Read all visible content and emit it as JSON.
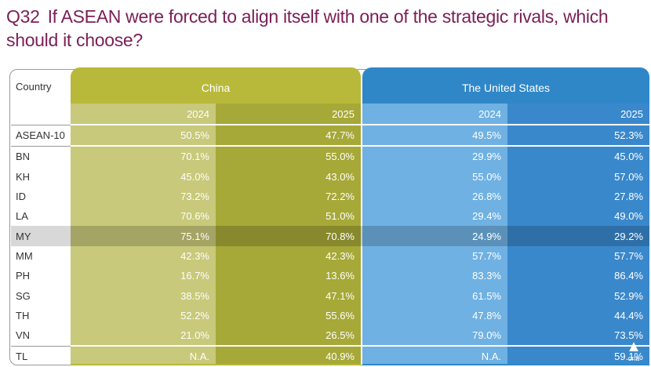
{
  "question": {
    "number": "Q32",
    "text": "If ASEAN were forced to align itself with one of the strategic rivals, which should it choose?"
  },
  "colors": {
    "china_panel": "#b8b93a",
    "china_2024": "#c8c97a",
    "china_2025": "#a6a838",
    "us_panel": "#2f87c8",
    "us_2024": "#6fb1e2",
    "us_2025": "#3a88cc",
    "title": "#7a1f57"
  },
  "logo": {
    "text": "cna"
  },
  "chart_data": {
    "type": "table",
    "row_header": "Country",
    "groups": [
      {
        "name": "China",
        "years": [
          "2024",
          "2025"
        ]
      },
      {
        "name": "The United States",
        "years": [
          "2024",
          "2025"
        ]
      }
    ],
    "rows": [
      {
        "country": "ASEAN-10",
        "values": [
          "50.5%",
          "47.7%",
          "49.5%",
          "52.3%"
        ]
      },
      {
        "country": "BN",
        "values": [
          "70.1%",
          "55.0%",
          "29.9%",
          "45.0%"
        ]
      },
      {
        "country": "KH",
        "values": [
          "45.0%",
          "43.0%",
          "55.0%",
          "57.0%"
        ]
      },
      {
        "country": "ID",
        "values": [
          "73.2%",
          "72.2%",
          "26.8%",
          "27.8%"
        ]
      },
      {
        "country": "LA",
        "values": [
          "70.6%",
          "51.0%",
          "29.4%",
          "49.0%"
        ]
      },
      {
        "country": "MY",
        "values": [
          "75.1%",
          "70.8%",
          "24.9%",
          "29.2%"
        ]
      },
      {
        "country": "MM",
        "values": [
          "42.3%",
          "42.3%",
          "57.7%",
          "57.7%"
        ]
      },
      {
        "country": "PH",
        "values": [
          "16.7%",
          "13.6%",
          "83.3%",
          "86.4%"
        ]
      },
      {
        "country": "SG",
        "values": [
          "38.5%",
          "47.1%",
          "61.5%",
          "52.9%"
        ]
      },
      {
        "country": "TH",
        "values": [
          "52.2%",
          "55.6%",
          "47.8%",
          "44.4%"
        ]
      },
      {
        "country": "VN",
        "values": [
          "21.0%",
          "26.5%",
          "79.0%",
          "73.5%"
        ]
      },
      {
        "country": "TL",
        "values": [
          "N.A.",
          "40.9%",
          "N.A.",
          "59.1%"
        ]
      }
    ]
  }
}
